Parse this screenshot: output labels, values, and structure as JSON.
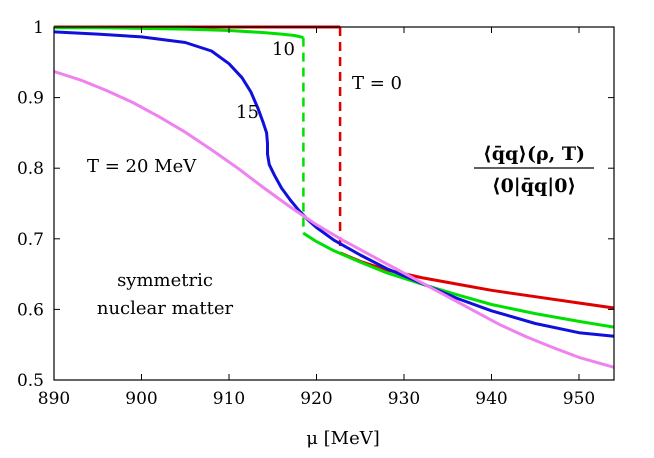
{
  "chart_data": {
    "type": "line",
    "title": "",
    "xlabel": "μ [MeV]",
    "ylabel": "",
    "xlim": [
      890,
      954
    ],
    "ylim": [
      0.5,
      1.0
    ],
    "x_ticks": [
      890,
      900,
      910,
      920,
      930,
      940,
      950
    ],
    "y_ticks": [
      0.5,
      0.6,
      0.7,
      0.8,
      0.9,
      1.0
    ],
    "x_tick_labels": [
      "890",
      "900",
      "910",
      "920",
      "930",
      "940",
      "950"
    ],
    "y_tick_labels": [
      "0.5",
      "0.6",
      "0.7",
      "0.8",
      "0.9",
      "1"
    ],
    "grid": false,
    "series": [
      {
        "name": "T = 0",
        "color": "#e00000",
        "segments": [
          {
            "style": "solid",
            "points": [
              [
                890,
                1.0
              ],
              [
                922.7,
                1.0
              ]
            ]
          },
          {
            "style": "dashed",
            "points": [
              [
                922.7,
                1.0
              ],
              [
                922.7,
                0.68
              ]
            ]
          },
          {
            "style": "solid",
            "points": [
              [
                922.7,
                0.68
              ],
              [
                925,
                0.668
              ],
              [
                928,
                0.656
              ],
              [
                932,
                0.645
              ],
              [
                936,
                0.636
              ],
              [
                940,
                0.627
              ],
              [
                945,
                0.618
              ],
              [
                950,
                0.609
              ],
              [
                954,
                0.602
              ]
            ]
          }
        ]
      },
      {
        "name": "10",
        "color": "#00e000",
        "segments": [
          {
            "style": "solid",
            "points": [
              [
                890,
                0.999
              ],
              [
                895,
                0.999
              ],
              [
                900,
                0.998
              ],
              [
                905,
                0.997
              ],
              [
                910,
                0.995
              ],
              [
                914,
                0.992
              ],
              [
                916,
                0.99
              ],
              [
                917.5,
                0.988
              ],
              [
                918.5,
                0.985
              ]
            ]
          },
          {
            "style": "dashed",
            "points": [
              [
                918.5,
                0.985
              ],
              [
                918.5,
                0.708
              ]
            ]
          },
          {
            "style": "solid",
            "points": [
              [
                918.5,
                0.708
              ],
              [
                920,
                0.696
              ],
              [
                922,
                0.683
              ],
              [
                925,
                0.667
              ],
              [
                928,
                0.652
              ],
              [
                932,
                0.636
              ],
              [
                936,
                0.621
              ],
              [
                940,
                0.607
              ],
              [
                945,
                0.594
              ],
              [
                950,
                0.583
              ],
              [
                954,
                0.575
              ]
            ]
          }
        ]
      },
      {
        "name": "15",
        "color": "#1010dd",
        "segments": [
          {
            "style": "solid",
            "points": [
              [
                890,
                0.993
              ],
              [
                895,
                0.99
              ],
              [
                900,
                0.986
              ],
              [
                905,
                0.978
              ],
              [
                908,
                0.966
              ],
              [
                910,
                0.948
              ],
              [
                911.5,
                0.928
              ],
              [
                912.5,
                0.908
              ],
              [
                913.3,
                0.885
              ],
              [
                913.9,
                0.865
              ],
              [
                914.3,
                0.85
              ],
              [
                914.4,
                0.835
              ],
              [
                914.4,
                0.82
              ],
              [
                914.6,
                0.805
              ],
              [
                915.2,
                0.79
              ],
              [
                916,
                0.772
              ],
              [
                917,
                0.755
              ],
              [
                918,
                0.74
              ],
              [
                919,
                0.727
              ],
              [
                920,
                0.716
              ],
              [
                922,
                0.698
              ],
              [
                925,
                0.677
              ],
              [
                928,
                0.658
              ],
              [
                932,
                0.637
              ],
              [
                936,
                0.616
              ],
              [
                940,
                0.598
              ],
              [
                945,
                0.58
              ],
              [
                950,
                0.567
              ],
              [
                954,
                0.562
              ]
            ]
          }
        ]
      },
      {
        "name": "T = 20 MeV",
        "color": "#ee82ee",
        "segments": [
          {
            "style": "solid",
            "points": [
              [
                890,
                0.937
              ],
              [
                893,
                0.925
              ],
              [
                896,
                0.91
              ],
              [
                899,
                0.893
              ],
              [
                902,
                0.873
              ],
              [
                905,
                0.851
              ],
              [
                908,
                0.826
              ],
              [
                911,
                0.8
              ],
              [
                914,
                0.772
              ],
              [
                917,
                0.745
              ],
              [
                920,
                0.72
              ],
              [
                923,
                0.698
              ],
              [
                926,
                0.678
              ],
              [
                929,
                0.658
              ],
              [
                932,
                0.638
              ],
              [
                935,
                0.618
              ],
              [
                938,
                0.598
              ],
              [
                941,
                0.578
              ],
              [
                944,
                0.561
              ],
              [
                947,
                0.546
              ],
              [
                950,
                0.532
              ],
              [
                954,
                0.518
              ]
            ]
          }
        ]
      }
    ],
    "annotations": {
      "label_10": "10",
      "label_15": "15",
      "label_t0": "T = 0",
      "label_t20": "T = 20 MeV",
      "formula_numerator": "⟨q̄q⟩(ρ, T)",
      "formula_denominator": "⟨0|q̄q|0⟩",
      "legend_line1": "symmetric",
      "legend_line2": "nuclear matter"
    }
  }
}
